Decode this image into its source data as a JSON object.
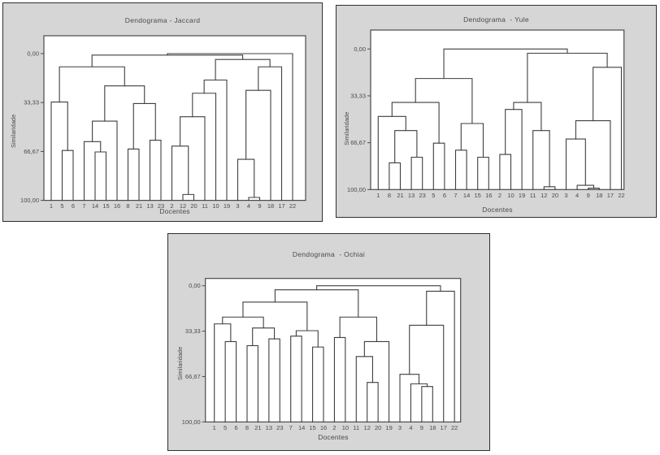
{
  "figure": {
    "description": "Three hierarchical clustering dendrograms comparing similarity coefficients",
    "background_color": "#d6d6d6",
    "plot_background": "#ffffff",
    "line_color": "#3f3f3f"
  },
  "panels": [
    {
      "title": "Dendograma - Jaccard",
      "y_axis_label": "Similaridade",
      "x_axis_label": "Docentes",
      "y_tick_labels": [
        "0,00",
        "33,33",
        "66,67",
        "100,00"
      ]
    },
    {
      "title": "Dendograma  - Yule",
      "y_axis_label": "Similaridade",
      "x_axis_label": "Docentes",
      "y_tick_labels": [
        "0,00",
        "33,33",
        "66,67",
        "100,00"
      ]
    },
    {
      "title": "Dendograma  - Ochiai",
      "y_axis_label": "Similaridade",
      "x_axis_label": "Docentes",
      "y_tick_labels": [
        "0,00",
        "33,33",
        "66,67",
        "100,00"
      ]
    }
  ],
  "chart_data": [
    {
      "type": "dendrogram",
      "title": "Dendograma - Jaccard",
      "xlabel": "Docentes",
      "ylabel": "Similaridade",
      "y_axis": {
        "tick_labels": [
          "0,00",
          "33,33",
          "66,67",
          "100,00"
        ],
        "tick_values": [
          0,
          33.33,
          66.67,
          100
        ],
        "top_value": 0,
        "bottom_value": 100
      },
      "leaves": [
        "1",
        "5",
        "6",
        "7",
        "14",
        "15",
        "16",
        "8",
        "21",
        "13",
        "23",
        "2",
        "12",
        "20",
        "11",
        "10",
        "19",
        "3",
        "4",
        "9",
        "18",
        "17",
        "22"
      ],
      "merges": [
        [
          1,
          2,
          66
        ],
        [
          0,
          23,
          33
        ],
        [
          4,
          5,
          67
        ],
        [
          3,
          25,
          60
        ],
        [
          26,
          6,
          46
        ],
        [
          7,
          8,
          65
        ],
        [
          9,
          10,
          59
        ],
        [
          28,
          29,
          34
        ],
        [
          27,
          30,
          22
        ],
        [
          24,
          31,
          9
        ],
        [
          12,
          13,
          96
        ],
        [
          11,
          33,
          63
        ],
        [
          34,
          14,
          43
        ],
        [
          35,
          15,
          27
        ],
        [
          36,
          16,
          18
        ],
        [
          18,
          19,
          98
        ],
        [
          17,
          38,
          72
        ],
        [
          39,
          20,
          25
        ],
        [
          40,
          21,
          9
        ],
        [
          37,
          41,
          4
        ],
        [
          32,
          42,
          1
        ],
        [
          43,
          22,
          0
        ]
      ]
    },
    {
      "type": "dendrogram",
      "title": "Dendograma  - Yule",
      "xlabel": "Docentes",
      "ylabel": "Similaridade",
      "y_axis": {
        "tick_labels": [
          "0,00",
          "33,33",
          "66,67",
          "100,00"
        ],
        "tick_values": [
          0,
          33.33,
          66.67,
          100
        ],
        "top_value": 0,
        "bottom_value": 100
      },
      "leaves": [
        "1",
        "8",
        "21",
        "13",
        "23",
        "5",
        "6",
        "7",
        "14",
        "15",
        "16",
        "2",
        "10",
        "19",
        "11",
        "12",
        "20",
        "3",
        "4",
        "9",
        "18",
        "17",
        "22"
      ],
      "merges": [
        [
          1,
          2,
          81
        ],
        [
          3,
          4,
          77
        ],
        [
          23,
          24,
          58
        ],
        [
          0,
          25,
          48
        ],
        [
          5,
          6,
          67
        ],
        [
          26,
          27,
          38
        ],
        [
          7,
          8,
          72
        ],
        [
          9,
          10,
          77
        ],
        [
          29,
          30,
          53
        ],
        [
          28,
          31,
          21
        ],
        [
          11,
          12,
          75
        ],
        [
          33,
          13,
          43
        ],
        [
          15,
          16,
          98
        ],
        [
          14,
          35,
          58
        ],
        [
          34,
          36,
          38
        ],
        [
          19,
          20,
          99
        ],
        [
          18,
          38,
          97
        ],
        [
          17,
          39,
          64
        ],
        [
          40,
          21,
          51
        ],
        [
          41,
          22,
          13
        ],
        [
          37,
          42,
          3
        ],
        [
          32,
          43,
          0
        ]
      ]
    },
    {
      "type": "dendrogram",
      "title": "Dendograma  - Ochiai",
      "xlabel": "Docentes",
      "ylabel": "Similaridade",
      "y_axis": {
        "tick_labels": [
          "0,00",
          "33,33",
          "66,67",
          "100,00"
        ],
        "tick_values": [
          0,
          33.33,
          66.67,
          100
        ],
        "top_value": 0,
        "bottom_value": 100
      },
      "leaves": [
        "1",
        "5",
        "6",
        "8",
        "21",
        "13",
        "23",
        "7",
        "14",
        "15",
        "16",
        "2",
        "10",
        "11",
        "12",
        "20",
        "19",
        "3",
        "4",
        "9",
        "18",
        "17",
        "22"
      ],
      "merges": [
        [
          1,
          2,
          41
        ],
        [
          0,
          23,
          28
        ],
        [
          3,
          4,
          44
        ],
        [
          5,
          6,
          39
        ],
        [
          25,
          26,
          31
        ],
        [
          24,
          27,
          23
        ],
        [
          7,
          8,
          37
        ],
        [
          9,
          10,
          45
        ],
        [
          29,
          30,
          33
        ],
        [
          28,
          31,
          12
        ],
        [
          11,
          12,
          38
        ],
        [
          14,
          15,
          71
        ],
        [
          13,
          34,
          52
        ],
        [
          35,
          16,
          41
        ],
        [
          33,
          36,
          23
        ],
        [
          19,
          20,
          74
        ],
        [
          18,
          38,
          72
        ],
        [
          17,
          39,
          65
        ],
        [
          40,
          21,
          29
        ],
        [
          41,
          22,
          4
        ],
        [
          32,
          37,
          3
        ],
        [
          43,
          42,
          0
        ]
      ]
    }
  ]
}
